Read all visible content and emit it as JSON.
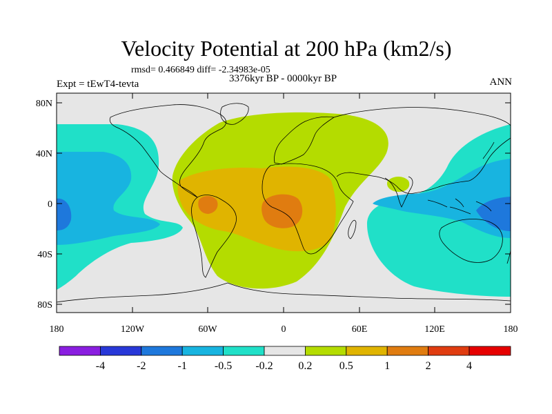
{
  "header": {
    "title": "Velocity Potential at 200 hPa (km2/s)",
    "stats": "rmsd= 0.466849 diff= -2.34983e-05",
    "period": "3376kyr BP - 0000kyr BP",
    "experiment": "Expt = tEwT4-tevta",
    "season": "ANN"
  },
  "axes": {
    "lat_ticks": [
      "80N",
      "40N",
      "0",
      "40S",
      "80S"
    ],
    "lon_ticks": [
      "180",
      "120W",
      "60W",
      "0",
      "60E",
      "120E",
      "180"
    ]
  },
  "colorbar": {
    "labels": [
      "-4",
      "-2",
      "-1",
      "-0.5",
      "-0.2",
      "0.2",
      "0.5",
      "1",
      "2",
      "4"
    ],
    "colors": [
      "#8a1ee0",
      "#2838d8",
      "#1e78dc",
      "#18b4e0",
      "#20e0c8",
      "#e6e6e6",
      "#b4dc00",
      "#e0b400",
      "#e07c10",
      "#e03c10",
      "#e60000"
    ]
  },
  "colors": {
    "land_background": "#e6e6e6",
    "positive_weak": "#b4dc00",
    "positive_mid": "#e0b400",
    "positive_strong": "#e07c10",
    "negative_weak": "#20e0c8",
    "negative_mid": "#18b4e0",
    "negative_strong": "#1e78dc"
  }
}
